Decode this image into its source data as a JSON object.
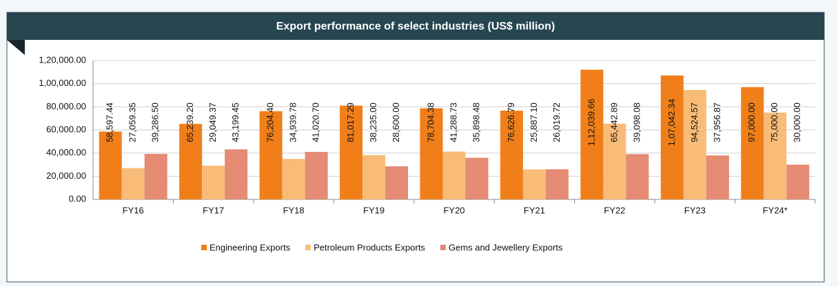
{
  "chart_data": {
    "type": "bar",
    "title": "Export performance of select industries (US$ million)",
    "categories": [
      "FY16",
      "FY17",
      "FY18",
      "FY19",
      "FY20",
      "FY21",
      "FY22",
      "FY23",
      "FY24*"
    ],
    "series": [
      {
        "name": "Engineering Exports",
        "color": "#f07f1a",
        "values": [
          58597.44,
          65239.2,
          76204.4,
          81017.29,
          78704.38,
          76626.79,
          112039.66,
          107042.34,
          97000.0
        ],
        "value_labels": [
          "58,597.44",
          "65,239.20",
          "76,204.40",
          "81,017.29",
          "78,704.38",
          "76,626.79",
          "1,12,039.66",
          "1,07,042.34",
          "97,000.00"
        ]
      },
      {
        "name": "Petroleum Products Exports",
        "color": "#f8bc78",
        "values": [
          27059.35,
          29049.37,
          34939.78,
          38235.0,
          41288.73,
          25887.1,
          65442.89,
          94524.57,
          75000.0
        ],
        "value_labels": [
          "27,059.35",
          "29,049.37",
          "34,939.78",
          "38,235.00",
          "41,288.73",
          "25,887.10",
          "65,442.89",
          "94,524.57",
          "75,000.00"
        ]
      },
      {
        "name": "Gems and Jewellery Exports",
        "color": "#e58a73",
        "values": [
          39286.5,
          43199.45,
          41020.7,
          28600.0,
          35898.48,
          26019.72,
          39098.08,
          37956.87,
          30000.0
        ],
        "value_labels": [
          "39,286.50",
          "43,199.45",
          "41,020.70",
          "28,600.00",
          "35,898.48",
          "26,019.72",
          "39,098.08",
          "37,956.87",
          "30,000.00"
        ]
      }
    ],
    "ylim": [
      0,
      120000
    ],
    "yticks": [
      {
        "value": 0,
        "label": "0.00"
      },
      {
        "value": 20000,
        "label": "20,000.00"
      },
      {
        "value": 40000,
        "label": "40,000.00"
      },
      {
        "value": 60000,
        "label": "60,000.00"
      },
      {
        "value": 80000,
        "label": "80,000.00"
      },
      {
        "value": 100000,
        "label": "1,00,000.00"
      },
      {
        "value": 120000,
        "label": "1,20,000.00"
      }
    ],
    "grid": true,
    "legend": "bottom"
  }
}
